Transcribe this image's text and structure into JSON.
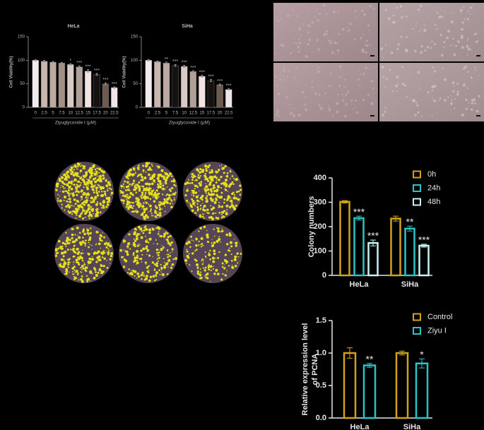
{
  "chart_data": [
    {
      "type": "bar",
      "title": "HeLa",
      "ylabel": "Cell Viability(%)",
      "xlabel": "Ziyuglycoside I (μM)",
      "categories": [
        "0",
        "2.5",
        "5",
        "7.5",
        "10",
        "12.5",
        "15",
        "17.5",
        "20",
        "22.5"
      ],
      "values": [
        100,
        98,
        96,
        94,
        91,
        86,
        77,
        70,
        50,
        42
      ],
      "errors": [
        1.5,
        1.5,
        1.5,
        1.5,
        2,
        2,
        3,
        2,
        2,
        1.5
      ],
      "colors": [
        "#f3ecec",
        "#c8b6af",
        "#bcaaa2",
        "#a38f86",
        "#d8cac5",
        "#b2a097",
        "#f3e4e4",
        "#161212",
        "#6e5b50",
        "#f1e5e8"
      ],
      "significance": [
        null,
        null,
        null,
        null,
        "*",
        "***",
        "***",
        "***",
        "***",
        "***"
      ],
      "ylim": [
        0,
        150
      ],
      "yticks": [
        0,
        50,
        100,
        150
      ]
    },
    {
      "type": "bar",
      "title": "SiHa",
      "ylabel": "Cell Viability(%)",
      "xlabel": "Ziyuglycoside I (μM)",
      "categories": [
        "0",
        "2.5",
        "5",
        "7.5",
        "10",
        "12.5",
        "15",
        "17.5",
        "20",
        "22.5"
      ],
      "values": [
        100,
        97,
        94,
        89,
        87,
        76,
        66,
        57,
        48,
        38
      ],
      "errors": [
        1.5,
        1.5,
        2,
        2,
        2,
        2,
        2,
        2,
        1.5,
        1.5
      ],
      "colors": [
        "#f3ecec",
        "#c8b6af",
        "#bcaaa2",
        "#161212",
        "#d8cac5",
        "#b2a097",
        "#f3e4e4",
        "#161212",
        "#6e5b50",
        "#f1e5e8"
      ],
      "significance": [
        null,
        null,
        "**",
        "***",
        "***",
        "***",
        "***",
        "***",
        "***",
        "***"
      ],
      "ylim": [
        0,
        150
      ],
      "yticks": [
        0,
        50,
        100,
        150
      ]
    },
    {
      "type": "bar",
      "ylabel": "Colony numbers",
      "categories": [
        "HeLa",
        "SiHa"
      ],
      "series": [
        {
          "name": "0h",
          "color": "#d4a21a",
          "values": [
            302,
            233
          ],
          "errors": [
            5,
            10
          ],
          "significance": [
            null,
            null
          ]
        },
        {
          "name": "24h",
          "color": "#2ac4c4",
          "values": [
            235,
            192
          ],
          "errors": [
            8,
            10
          ],
          "significance": [
            "***",
            "**"
          ]
        },
        {
          "name": "48h",
          "color": "#c6f2f2",
          "values": [
            133,
            122
          ],
          "errors": [
            12,
            6
          ],
          "significance": [
            "***",
            "***"
          ]
        }
      ],
      "ylim": [
        0,
        400
      ],
      "yticks": [
        0,
        100,
        200,
        300,
        400
      ],
      "legend": "upper right"
    },
    {
      "type": "bar",
      "ylabel": [
        "Relative expression level",
        "of PCNA"
      ],
      "categories": [
        "HeLa",
        "SiHa"
      ],
      "series": [
        {
          "name": "Control",
          "color": "#d4a21a",
          "values": [
            1.0,
            1.0
          ],
          "errors": [
            0.08,
            0.03
          ],
          "significance": [
            null,
            null
          ]
        },
        {
          "name": "Ziyu I",
          "color": "#2ac4c4",
          "values": [
            0.81,
            0.84
          ],
          "errors": [
            0.03,
            0.07
          ],
          "significance": [
            "**",
            "*"
          ]
        }
      ],
      "ylim": [
        0,
        1.5
      ],
      "yticks": [
        {
          "value": 0,
          "label": "0.0"
        },
        0.5,
        {
          "value": 1.0,
          "label": "1.0"
        },
        1.5
      ],
      "legend": "upper right"
    }
  ]
}
